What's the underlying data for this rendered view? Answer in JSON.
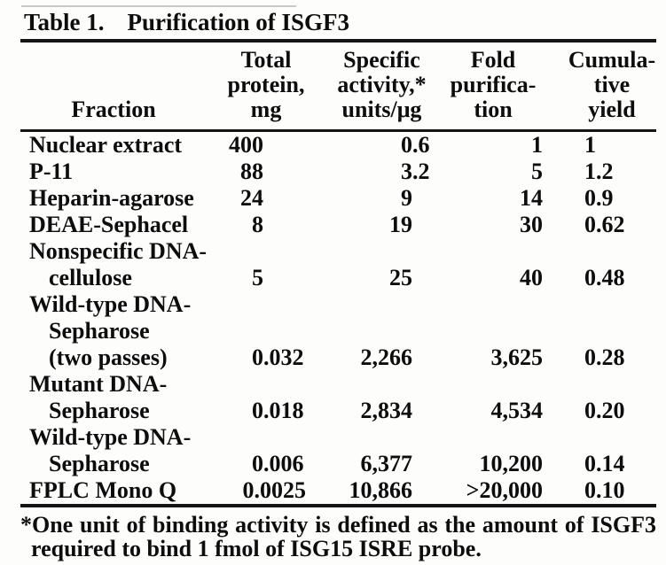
{
  "page": {
    "background": "#fdfdfc",
    "text_color": "#0d0d0d"
  },
  "table": {
    "title": {
      "label": "Table 1.",
      "caption": "Purification of ISGF3"
    },
    "columns": [
      {
        "id": "fraction",
        "header_lines": [
          "Fraction"
        ]
      },
      {
        "id": "total_protein",
        "header_lines": [
          "Total",
          "protein,",
          "mg"
        ]
      },
      {
        "id": "specific_activity",
        "header_lines": [
          "Specific",
          "activity,*",
          "units/μg"
        ]
      },
      {
        "id": "fold_purification",
        "header_lines": [
          "Fold",
          "purifica-",
          "tion"
        ]
      },
      {
        "id": "cumulative_yield",
        "header_lines": [
          "Cumula-",
          "tive",
          "yield"
        ]
      }
    ],
    "rows": [
      {
        "fraction_lines": [
          "Nuclear extract"
        ],
        "total_protein": "400",
        "specific_activity": "0.6",
        "fold_purification": "1",
        "cumulative_yield": "1"
      },
      {
        "fraction_lines": [
          "P-11"
        ],
        "total_protein": "88",
        "specific_activity": "3.2",
        "fold_purification": "5",
        "cumulative_yield": "1.2"
      },
      {
        "fraction_lines": [
          "Heparin-agarose"
        ],
        "total_protein": "24",
        "specific_activity": "9",
        "fold_purification": "14",
        "cumulative_yield": "0.9"
      },
      {
        "fraction_lines": [
          "DEAE-Sephacel"
        ],
        "total_protein": "8",
        "specific_activity": "19",
        "fold_purification": "30",
        "cumulative_yield": "0.62"
      },
      {
        "fraction_lines": [
          "Nonspecific DNA-",
          "cellulose"
        ],
        "total_protein": "5",
        "specific_activity": "25",
        "fold_purification": "40",
        "cumulative_yield": "0.48"
      },
      {
        "fraction_lines": [
          "Wild-type DNA-",
          "Sepharose",
          "(two passes)"
        ],
        "total_protein": "0.032",
        "specific_activity": "2,266",
        "fold_purification": "3,625",
        "cumulative_yield": "0.28"
      },
      {
        "fraction_lines": [
          "Mutant DNA-",
          "Sepharose"
        ],
        "total_protein": "0.018",
        "specific_activity": "2,834",
        "fold_purification": "4,534",
        "cumulative_yield": "0.20"
      },
      {
        "fraction_lines": [
          "Wild-type DNA-",
          "Sepharose"
        ],
        "total_protein": "0.006",
        "specific_activity": "6,377",
        "fold_purification": "10,200",
        "cumulative_yield": "0.14"
      },
      {
        "fraction_lines": [
          "FPLC Mono Q"
        ],
        "total_protein": "0.0025",
        "specific_activity": "10,866",
        "fold_purification": ">20,000",
        "cumulative_yield": "0.10"
      }
    ],
    "footnote": {
      "line1": "*One unit of binding activity is defined as the amount of ISGF3",
      "line2": "required to bind 1 fmol of ISG15 ISRE probe."
    }
  },
  "chart_data": {
    "type": "table",
    "title": "Table 1. Purification of ISGF3",
    "columns": [
      "Fraction",
      "Total protein, mg",
      "Specific activity,* units/μg",
      "Fold purification",
      "Cumulative yield"
    ],
    "rows": [
      [
        "Nuclear extract",
        "400",
        "0.6",
        "1",
        "1"
      ],
      [
        "P-11",
        "88",
        "3.2",
        "5",
        "1.2"
      ],
      [
        "Heparin-agarose",
        "24",
        "9",
        "14",
        "0.9"
      ],
      [
        "DEAE-Sephacel",
        "8",
        "19",
        "30",
        "0.62"
      ],
      [
        "Nonspecific DNA-cellulose",
        "5",
        "25",
        "40",
        "0.48"
      ],
      [
        "Wild-type DNA-Sepharose (two passes)",
        "0.032",
        "2,266",
        "3,625",
        "0.28"
      ],
      [
        "Mutant DNA-Sepharose",
        "0.018",
        "2,834",
        "4,534",
        "0.20"
      ],
      [
        "Wild-type DNA-Sepharose",
        "0.006",
        "6,377",
        "10,200",
        "0.14"
      ],
      [
        "FPLC Mono Q",
        "0.0025",
        "10,866",
        ">20,000",
        "0.10"
      ]
    ],
    "footnote": "*One unit of binding activity is defined as the amount of ISGF3 required to bind 1 fmol of ISG15 ISRE probe."
  }
}
